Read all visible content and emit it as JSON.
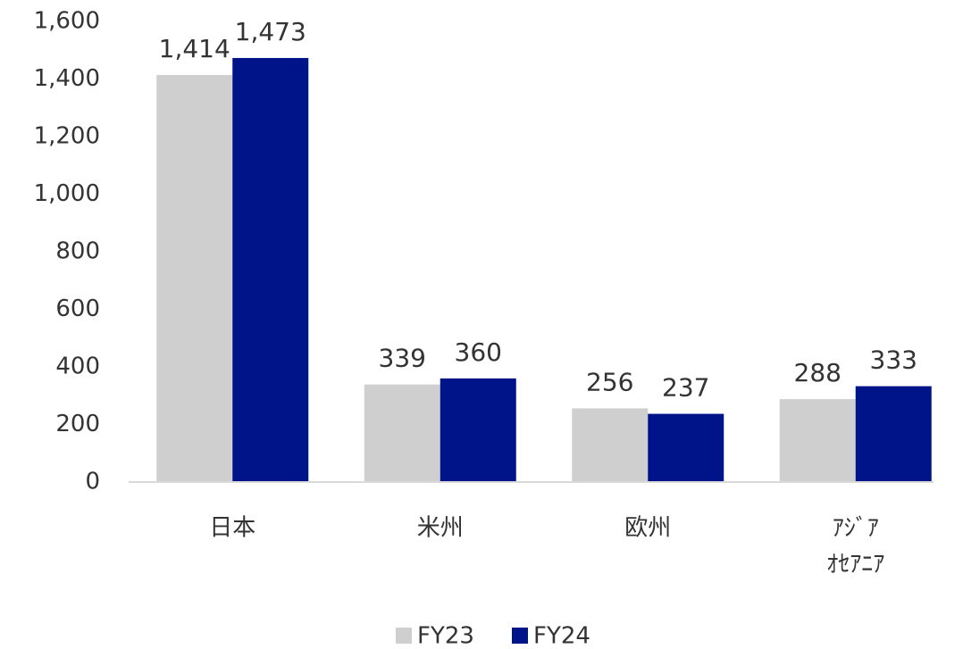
{
  "chart_data": {
    "type": "bar",
    "categories": [
      "日本",
      "米州",
      "欧州",
      "ｱｼﾞｱ\nｵｾｱﾆｱ"
    ],
    "series": [
      {
        "name": "FY23",
        "color": "#d0cfd0",
        "values": [
          1414,
          339,
          256,
          288
        ],
        "value_labels": [
          "1,414",
          "339",
          "256",
          "288"
        ]
      },
      {
        "name": "FY24",
        "color": "#001489",
        "values": [
          1473,
          360,
          237,
          333
        ],
        "value_labels": [
          "1,473",
          "360",
          "237",
          "333"
        ]
      }
    ],
    "ylim": [
      0,
      1600
    ],
    "yticks": [
      0,
      200,
      400,
      600,
      800,
      {
        "value": 1000,
        "label": "1,000"
      },
      {
        "value": 1200,
        "label": "1,200"
      },
      {
        "value": 1400,
        "label": "1,400"
      },
      {
        "value": 1600,
        "label": "1,600"
      }
    ],
    "grid": false,
    "legend": "bottom"
  }
}
